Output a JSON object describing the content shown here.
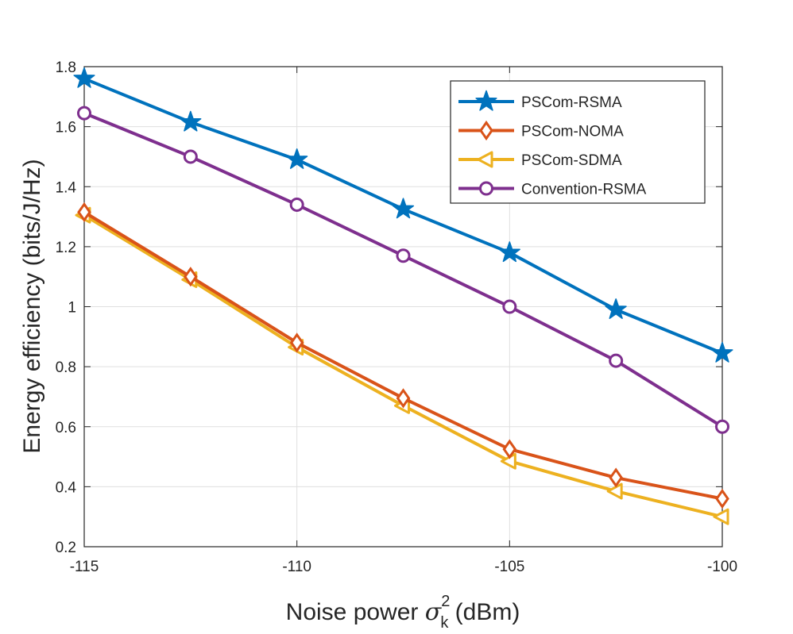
{
  "chart_data": {
    "type": "line",
    "title": "",
    "xlabel_prefix": "Noise power ",
    "xlabel_symbol": "σ",
    "xlabel_subscript": "k",
    "xlabel_superscript": "2",
    "xlabel_suffix": " (dBm)",
    "ylabel": "Energy efficiency (bits/J/Hz)",
    "xlim": [
      -115,
      -100
    ],
    "ylim": [
      0.2,
      1.8
    ],
    "xticks": [
      -115,
      -110,
      -105,
      -100
    ],
    "xtick_labels": [
      "-115",
      "-110",
      "-105",
      "-100"
    ],
    "yticks": [
      0.2,
      0.4,
      0.6,
      0.8,
      1.0,
      1.2,
      1.4,
      1.6,
      1.8
    ],
    "ytick_labels": [
      "0.2",
      "0.4",
      "0.6",
      "0.8",
      "1",
      "1.2",
      "1.4",
      "1.6",
      "1.8"
    ],
    "grid": true,
    "legend_position": "top-right",
    "x": [
      -115,
      -112.5,
      -110,
      -107.5,
      -105,
      -102.5,
      -100
    ],
    "series": [
      {
        "name": "PSCom-RSMA",
        "marker": "star",
        "color": "#0072BD",
        "values": [
          1.76,
          1.615,
          1.49,
          1.325,
          1.18,
          0.99,
          0.845
        ]
      },
      {
        "name": "PSCom-NOMA",
        "marker": "diamond",
        "color": "#D95319",
        "values": [
          1.315,
          1.1,
          0.88,
          0.695,
          0.525,
          0.43,
          0.36
        ]
      },
      {
        "name": "PSCom-SDMA",
        "marker": "triangle-left",
        "color": "#EDB120",
        "values": [
          1.305,
          1.09,
          0.865,
          0.67,
          0.485,
          0.385,
          0.3
        ]
      },
      {
        "name": "Convention-RSMA",
        "marker": "circle",
        "color": "#7E2F8E",
        "values": [
          1.645,
          1.5,
          1.34,
          1.17,
          1.0,
          0.82,
          0.6
        ]
      }
    ]
  }
}
